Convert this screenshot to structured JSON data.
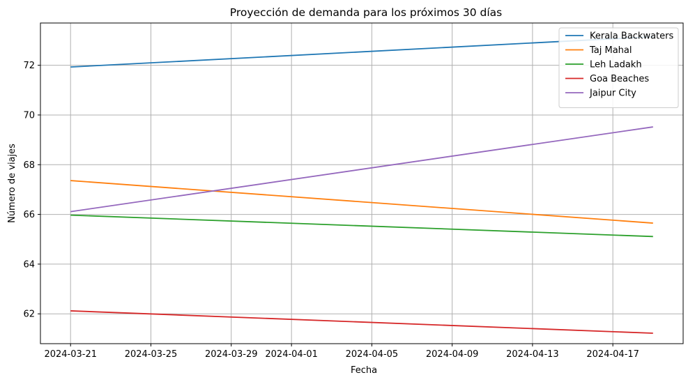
{
  "chart_data": {
    "type": "line",
    "title": "Proyección de demanda para los próximos 30 días",
    "xlabel": "Fecha",
    "ylabel": "Número de viajes",
    "x": [
      "2024-03-21",
      "2024-04-19"
    ],
    "xlim": [
      "2024-03-19 12:00",
      "2024-04-20 12:00"
    ],
    "ylim": [
      60.8,
      73.7
    ],
    "x_ticks": [
      "2024-03-21",
      "2024-03-25",
      "2024-03-29",
      "2024-04-01",
      "2024-04-05",
      "2024-04-09",
      "2024-04-13",
      "2024-04-17"
    ],
    "y_ticks": [
      62,
      64,
      66,
      68,
      70,
      72
    ],
    "grid": true,
    "legend_position": "top-right",
    "series": [
      {
        "name": "Kerala Backwaters",
        "color": "#1f77b4",
        "values": [
          71.93,
          73.15
        ]
      },
      {
        "name": "Taj Mahal",
        "color": "#ff7f0e",
        "values": [
          67.36,
          65.65
        ]
      },
      {
        "name": "Leh Ladakh",
        "color": "#2ca02c",
        "values": [
          65.97,
          65.11
        ]
      },
      {
        "name": "Goa Beaches",
        "color": "#d62728",
        "values": [
          62.12,
          61.22
        ]
      },
      {
        "name": "Jaipur City",
        "color": "#9467bd",
        "values": [
          66.11,
          69.52
        ]
      }
    ]
  }
}
